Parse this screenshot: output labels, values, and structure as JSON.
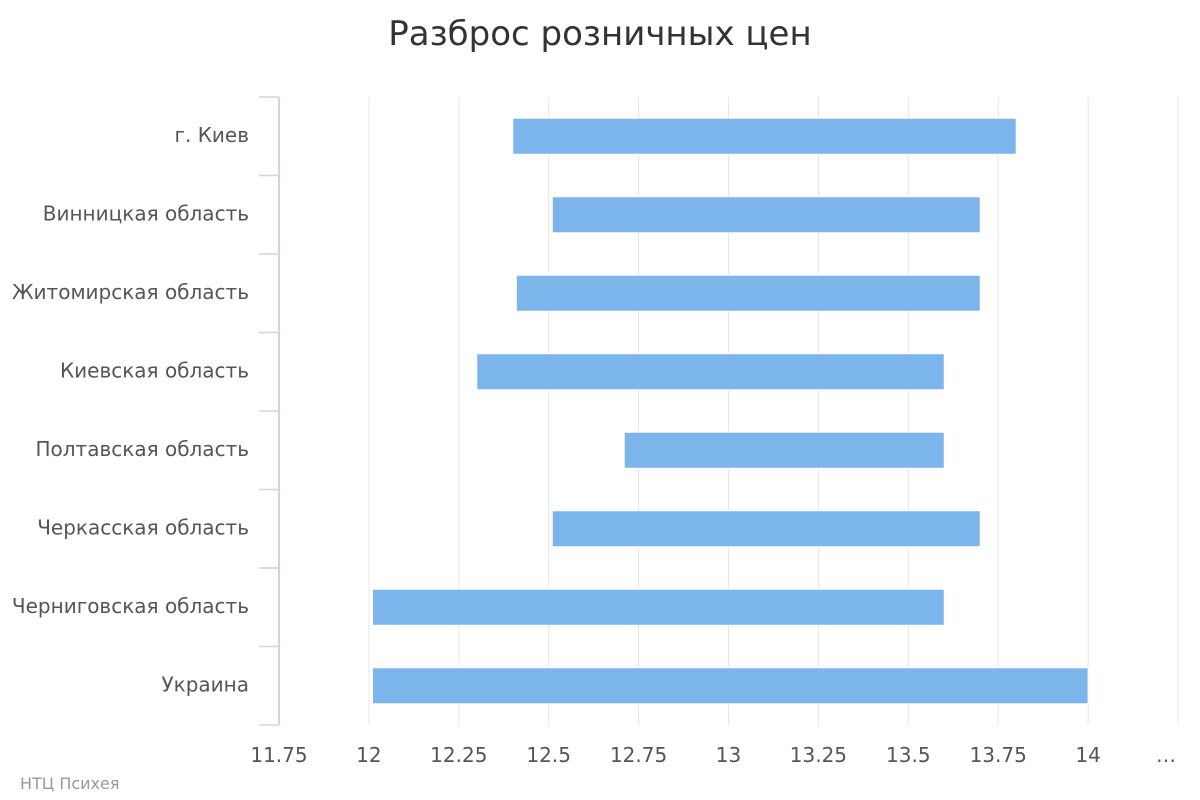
{
  "chart_data": {
    "type": "bar",
    "orientation": "horizontal",
    "subtype": "columnrange",
    "title": "Разброс розничных цен",
    "credit": "НТЦ Психея",
    "categories": [
      "г. Киев",
      "Винницкая область",
      "Житомирская область",
      "Киевская область",
      "Полтавская область",
      "Черкасская область",
      "Черниговская область",
      "Украина"
    ],
    "series": [
      {
        "color": "#7cb5ec",
        "ranges": [
          [
            12.4,
            13.8
          ],
          [
            12.51,
            13.7
          ],
          [
            12.41,
            13.7
          ],
          [
            12.3,
            13.6
          ],
          [
            12.71,
            13.6
          ],
          [
            12.51,
            13.7
          ],
          [
            12.01,
            13.6
          ],
          [
            12.01,
            14.0
          ]
        ]
      }
    ],
    "xlim": [
      11.75,
      14.25
    ],
    "ticks": [
      "11.75",
      "12",
      "12.25",
      "12.5",
      "12.75",
      "13",
      "13.25",
      "13.5",
      "13.75",
      "14",
      "…"
    ],
    "grid": true,
    "legend": "none"
  }
}
